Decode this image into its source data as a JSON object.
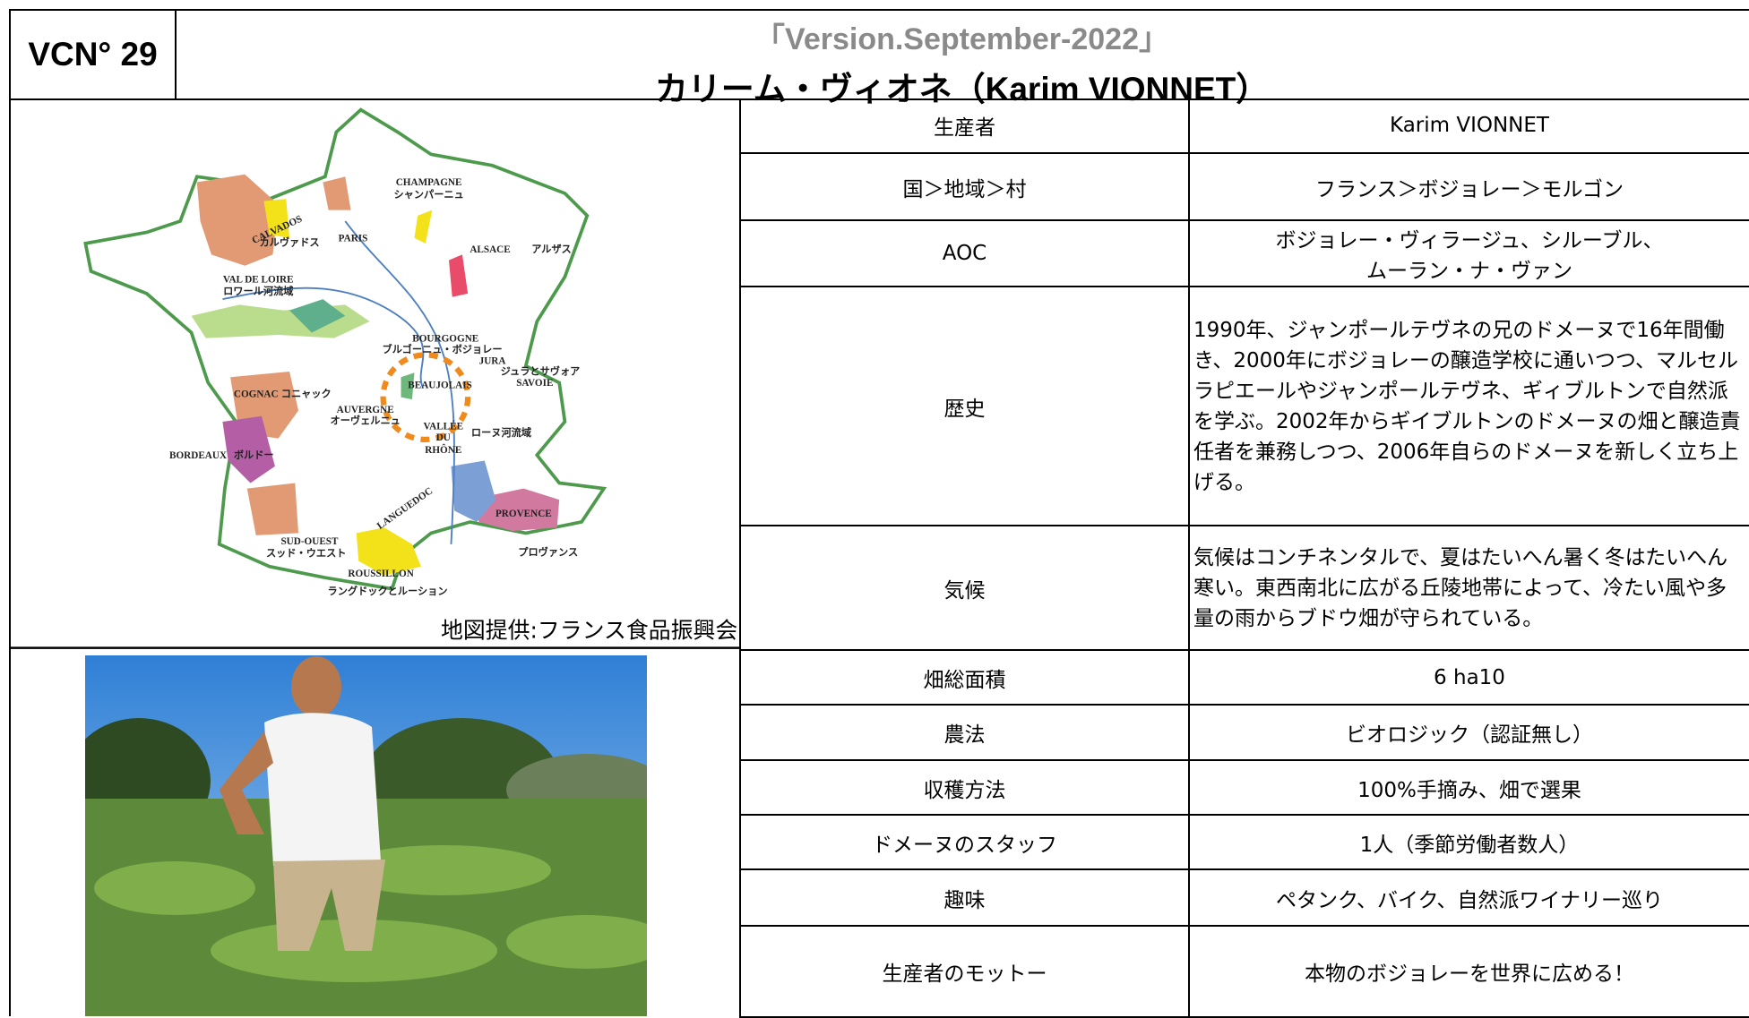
{
  "header": {
    "code": "VCN° 29",
    "version": "「Version.September-2022」",
    "title": "カリーム・ヴィオネ（Karim VIONNET）"
  },
  "map": {
    "labels": [
      "CHAMPAGNE",
      "シャンパーニュ",
      "CALVADOS",
      "カルヴァドス",
      "PARIS",
      "ALSACE",
      "アルザス",
      "VAL DE LOIRE",
      "ロワール河流域",
      "BOURGOGNE",
      "ブルゴーニュ・ボジョレー",
      "JURA",
      "ジュラとサヴォア",
      "SAVOIE",
      "COGNAC",
      "コニャック",
      "BEAUJOLAIS",
      "AUVERGNE",
      "オーヴェルニュ",
      "VALLÉE",
      "DU",
      "RHÔNE",
      "ローヌ河流域",
      "BORDEAUX",
      "ボルドー",
      "LANGUEDOC",
      "PROVENCE",
      "プロヴァンス",
      "SUD-OUEST",
      "スッド・ウエスト",
      "ROUSSILLON",
      "ラングドックとルーション"
    ],
    "caption": "地図提供:フランス食品振興会"
  },
  "table": {
    "rows": [
      [
        "生産者",
        "Karim VIONNET"
      ],
      [
        "国＞地域＞村",
        "フランス＞ボジョレー＞モルゴン"
      ],
      [
        "AOC",
        "ボジョレー・ヴィラージュ、シルーブル、\nムーラン・ナ・ヴァン"
      ],
      [
        "歴史",
        "1990年、ジャンポールテヴネの兄のドメーヌで16年間働き、2000年にボジョレーの醸造学校に通いつつ、マルセルラピエールやジャンポールテヴネ、ギィブルトンで自然派を学ぶ。2002年からギイブルトンのドメーヌの畑と醸造責任者を兼務しつつ、2006年自らのドメーヌを新しく立ち上げる。"
      ],
      [
        "気候",
        "気候はコンチネンタルで、夏はたいへん暑く冬はたいへん寒い。東西南北に広がる丘陵地帯によって、冷たい風や多量の雨からブドウ畑が守られている。"
      ],
      [
        "畑総面積",
        "6 ha10"
      ],
      [
        "農法",
        "ビオロジック（認証無し）"
      ],
      [
        "収穫方法",
        "100%手摘み、畑で選果"
      ],
      [
        "ドメーヌのスタッフ",
        "1人（季節労働者数人）"
      ],
      [
        "趣味",
        "ペタンク、バイク、自然派ワイナリー巡り"
      ],
      [
        "生産者のモットー",
        "本物のボジョレーを世界に広める！"
      ]
    ]
  }
}
